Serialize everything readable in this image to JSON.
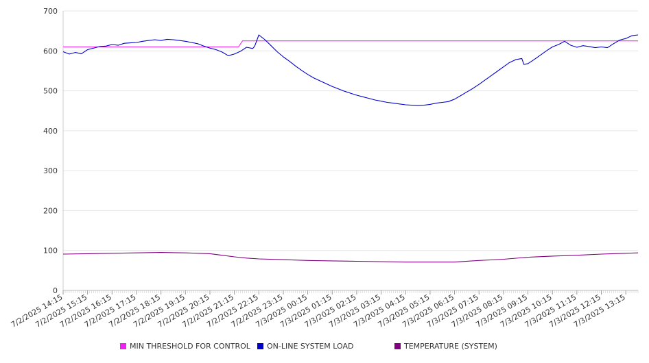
{
  "chart_data": {
    "type": "line",
    "title": "",
    "xlabel": "",
    "ylabel": "",
    "ylim": [
      0,
      700
    ],
    "y_ticks": [
      0,
      100,
      200,
      300,
      400,
      500,
      600,
      700
    ],
    "grid": "horizontal",
    "legend_position": "bottom",
    "x_start": "7/2/2025 14:15",
    "x_end": "7/3/2025 13:45",
    "x_tick_labels": [
      "7/2/2025 14:15",
      "7/2/2025 15:15",
      "7/2/2025 16:15",
      "7/2/2025 17:15",
      "7/2/2025 18:15",
      "7/2/2025 19:15",
      "7/2/2025 20:15",
      "7/2/2025 21:15",
      "7/2/2025 22:15",
      "7/2/2025 23:15",
      "7/3/2025 00:15",
      "7/3/2025 01:15",
      "7/3/2025 02:15",
      "7/3/2025 03:15",
      "7/3/2025 04:15",
      "7/3/2025 05:15",
      "7/3/2025 06:15",
      "7/3/2025 07:15",
      "7/3/2025 08:15",
      "7/3/2025 09:15",
      "7/3/2025 10:15",
      "7/3/2025 11:15",
      "7/3/2025 12:15",
      "7/3/2025 13:15"
    ],
    "series": [
      {
        "name": "MIN THRESHOLD FOR CONTROL",
        "color": "#ee22ee",
        "points": [
          [
            "7/2/2025 14:15",
            610
          ],
          [
            "7/2/2025 21:25",
            610
          ],
          [
            "7/2/2025 21:35",
            625
          ],
          [
            "7/3/2025 13:45",
            625
          ]
        ]
      },
      {
        "name": "ON-LINE SYSTEM LOAD",
        "color": "#0000cc",
        "points": [
          [
            "7/2/2025 14:15",
            598
          ],
          [
            "7/2/2025 14:30",
            592
          ],
          [
            "7/2/2025 14:45",
            596
          ],
          [
            "7/2/2025 15:00",
            593
          ],
          [
            "7/2/2025 15:15",
            603
          ],
          [
            "7/2/2025 15:30",
            607
          ],
          [
            "7/2/2025 15:45",
            611
          ],
          [
            "7/2/2025 16:00",
            612
          ],
          [
            "7/2/2025 16:15",
            616
          ],
          [
            "7/2/2025 16:30",
            614
          ],
          [
            "7/2/2025 16:45",
            619
          ],
          [
            "7/2/2025 17:00",
            620
          ],
          [
            "7/2/2025 17:15",
            621
          ],
          [
            "7/2/2025 17:30",
            624
          ],
          [
            "7/2/2025 17:45",
            626
          ],
          [
            "7/2/2025 18:00",
            628
          ],
          [
            "7/2/2025 18:15",
            626
          ],
          [
            "7/2/2025 18:30",
            629
          ],
          [
            "7/2/2025 18:45",
            628
          ],
          [
            "7/2/2025 19:00",
            626
          ],
          [
            "7/2/2025 19:15",
            624
          ],
          [
            "7/2/2025 19:30",
            621
          ],
          [
            "7/2/2025 19:45",
            618
          ],
          [
            "7/2/2025 20:00",
            612
          ],
          [
            "7/2/2025 20:15",
            607
          ],
          [
            "7/2/2025 20:30",
            603
          ],
          [
            "7/2/2025 20:45",
            597
          ],
          [
            "7/2/2025 21:00",
            588
          ],
          [
            "7/2/2025 21:15",
            592
          ],
          [
            "7/2/2025 21:30",
            599
          ],
          [
            "7/2/2025 21:45",
            609
          ],
          [
            "7/2/2025 22:00",
            606
          ],
          [
            "7/2/2025 22:05",
            612
          ],
          [
            "7/2/2025 22:15",
            640
          ],
          [
            "7/2/2025 22:30",
            628
          ],
          [
            "7/2/2025 22:45",
            613
          ],
          [
            "7/2/2025 23:00",
            598
          ],
          [
            "7/2/2025 23:15",
            585
          ],
          [
            "7/2/2025 23:30",
            574
          ],
          [
            "7/2/2025 23:45",
            562
          ],
          [
            "7/3/2025 00:00",
            551
          ],
          [
            "7/3/2025 00:15",
            541
          ],
          [
            "7/3/2025 00:30",
            532
          ],
          [
            "7/3/2025 00:45",
            525
          ],
          [
            "7/3/2025 01:00",
            518
          ],
          [
            "7/3/2025 01:15",
            511
          ],
          [
            "7/3/2025 01:30",
            505
          ],
          [
            "7/3/2025 01:45",
            499
          ],
          [
            "7/3/2025 02:00",
            494
          ],
          [
            "7/3/2025 02:15",
            489
          ],
          [
            "7/3/2025 02:30",
            485
          ],
          [
            "7/3/2025 02:45",
            481
          ],
          [
            "7/3/2025 03:00",
            477
          ],
          [
            "7/3/2025 03:15",
            474
          ],
          [
            "7/3/2025 03:30",
            471
          ],
          [
            "7/3/2025 03:45",
            469
          ],
          [
            "7/3/2025 04:00",
            467
          ],
          [
            "7/3/2025 04:15",
            465
          ],
          [
            "7/3/2025 04:30",
            464
          ],
          [
            "7/3/2025 04:45",
            463
          ],
          [
            "7/3/2025 05:00",
            464
          ],
          [
            "7/3/2025 05:15",
            466
          ],
          [
            "7/3/2025 05:30",
            469
          ],
          [
            "7/3/2025 05:45",
            471
          ],
          [
            "7/3/2025 06:00",
            473
          ],
          [
            "7/3/2025 06:15",
            479
          ],
          [
            "7/3/2025 06:30",
            488
          ],
          [
            "7/3/2025 06:45",
            497
          ],
          [
            "7/3/2025 07:00",
            506
          ],
          [
            "7/3/2025 07:15",
            516
          ],
          [
            "7/3/2025 07:30",
            527
          ],
          [
            "7/3/2025 07:45",
            538
          ],
          [
            "7/3/2025 08:00",
            549
          ],
          [
            "7/3/2025 08:15",
            560
          ],
          [
            "7/3/2025 08:30",
            571
          ],
          [
            "7/3/2025 08:45",
            578
          ],
          [
            "7/3/2025 09:00",
            581
          ],
          [
            "7/3/2025 09:05",
            566
          ],
          [
            "7/3/2025 09:15",
            568
          ],
          [
            "7/3/2025 09:30",
            578
          ],
          [
            "7/3/2025 09:45",
            589
          ],
          [
            "7/3/2025 10:00",
            600
          ],
          [
            "7/3/2025 10:15",
            610
          ],
          [
            "7/3/2025 10:30",
            616
          ],
          [
            "7/3/2025 10:45",
            624
          ],
          [
            "7/3/2025 11:00",
            614
          ],
          [
            "7/3/2025 11:15",
            609
          ],
          [
            "7/3/2025 11:30",
            613
          ],
          [
            "7/3/2025 11:45",
            611
          ],
          [
            "7/3/2025 12:00",
            608
          ],
          [
            "7/3/2025 12:15",
            610
          ],
          [
            "7/3/2025 12:30",
            608
          ],
          [
            "7/3/2025 12:45",
            618
          ],
          [
            "7/3/2025 13:00",
            627
          ],
          [
            "7/3/2025 13:15",
            631
          ],
          [
            "7/3/2025 13:30",
            638
          ],
          [
            "7/3/2025 13:45",
            640
          ]
        ]
      },
      {
        "name": "TEMPERATURE (SYSTEM)",
        "color": "#800080",
        "points": [
          [
            "7/2/2025 14:15",
            91
          ],
          [
            "7/2/2025 15:15",
            92
          ],
          [
            "7/2/2025 16:15",
            93
          ],
          [
            "7/2/2025 17:15",
            94
          ],
          [
            "7/2/2025 18:15",
            95
          ],
          [
            "7/2/2025 19:15",
            94
          ],
          [
            "7/2/2025 20:15",
            92
          ],
          [
            "7/2/2025 20:45",
            88
          ],
          [
            "7/2/2025 21:15",
            84
          ],
          [
            "7/2/2025 21:45",
            81
          ],
          [
            "7/2/2025 22:15",
            79
          ],
          [
            "7/2/2025 23:15",
            77
          ],
          [
            "7/3/2025 00:15",
            75
          ],
          [
            "7/3/2025 01:15",
            74
          ],
          [
            "7/3/2025 02:15",
            73
          ],
          [
            "7/3/2025 03:15",
            72
          ],
          [
            "7/3/2025 04:15",
            71
          ],
          [
            "7/3/2025 05:15",
            71
          ],
          [
            "7/3/2025 06:15",
            71
          ],
          [
            "7/3/2025 07:15",
            75
          ],
          [
            "7/3/2025 08:15",
            78
          ],
          [
            "7/3/2025 09:15",
            83
          ],
          [
            "7/3/2025 10:15",
            86
          ],
          [
            "7/3/2025 11:15",
            88
          ],
          [
            "7/3/2025 12:15",
            91
          ],
          [
            "7/3/2025 13:15",
            93
          ],
          [
            "7/3/2025 13:45",
            94
          ]
        ]
      }
    ]
  }
}
